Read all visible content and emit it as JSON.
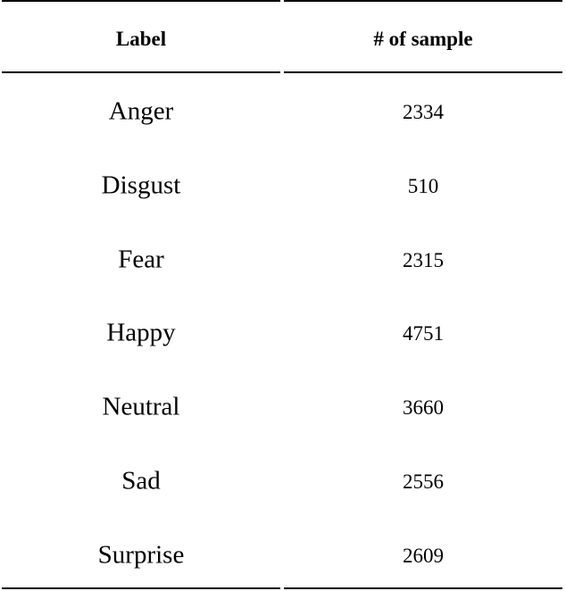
{
  "table": {
    "headers": [
      "Label",
      "# of sample"
    ],
    "rows": [
      {
        "label": "Anger",
        "count": "2334"
      },
      {
        "label": "Disgust",
        "count": "510"
      },
      {
        "label": "Fear",
        "count": "2315"
      },
      {
        "label": "Happy",
        "count": "4751"
      },
      {
        "label": "Neutral",
        "count": "3660"
      },
      {
        "label": "Sad",
        "count": "2556"
      },
      {
        "label": "Surprise",
        "count": "2609"
      }
    ]
  }
}
